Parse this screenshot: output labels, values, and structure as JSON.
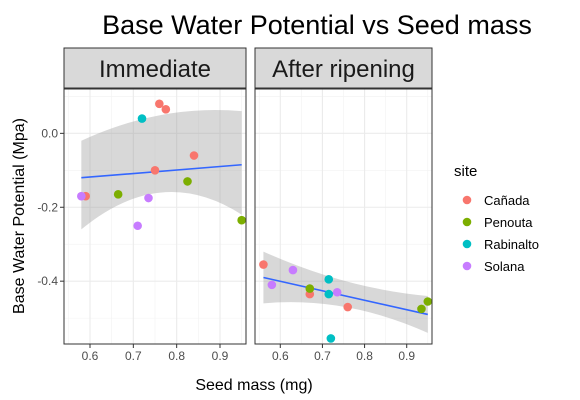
{
  "chart_data": {
    "type": "scatter",
    "title": "Base Water Potential vs Seed mass",
    "xlabel": "Seed mass (mg)",
    "ylabel": "Base Water Potential (Mpa)",
    "xlim": [
      0.54,
      0.96
    ],
    "ylim": [
      -0.57,
      0.12
    ],
    "x_ticks": [
      0.6,
      0.7,
      0.8,
      0.9
    ],
    "y_ticks": [
      0.0,
      -0.2,
      -0.4
    ],
    "grid": true,
    "legend_position": "right",
    "legend_title": "site",
    "sites": [
      {
        "name": "Cañada",
        "color": "#F8766D"
      },
      {
        "name": "Penouta",
        "color": "#7CAE00"
      },
      {
        "name": "Rabinalto",
        "color": "#00BFC4"
      },
      {
        "name": "Solana",
        "color": "#C77CFF"
      }
    ],
    "panels": [
      {
        "strip": "Immediate",
        "points": [
          {
            "x": 0.59,
            "y": -0.17,
            "site": "Cañada"
          },
          {
            "x": 0.75,
            "y": -0.1,
            "site": "Cañada"
          },
          {
            "x": 0.76,
            "y": 0.08,
            "site": "Cañada"
          },
          {
            "x": 0.775,
            "y": 0.065,
            "site": "Cañada"
          },
          {
            "x": 0.84,
            "y": -0.06,
            "site": "Cañada"
          },
          {
            "x": 0.665,
            "y": -0.165,
            "site": "Penouta"
          },
          {
            "x": 0.825,
            "y": -0.13,
            "site": "Penouta"
          },
          {
            "x": 0.95,
            "y": -0.235,
            "site": "Penouta"
          },
          {
            "x": 0.72,
            "y": 0.04,
            "site": "Rabinalto"
          },
          {
            "x": 0.58,
            "y": -0.17,
            "site": "Solana"
          },
          {
            "x": 0.71,
            "y": -0.25,
            "site": "Solana"
          },
          {
            "x": 0.735,
            "y": -0.175,
            "site": "Solana"
          }
        ],
        "fit": {
          "x": [
            0.58,
            0.95
          ],
          "y": [
            -0.12,
            -0.085
          ],
          "band_top": [
            -0.02,
            0.05,
            0.06
          ],
          "band_bottom": [
            -0.26,
            -0.16,
            -0.22
          ]
        }
      },
      {
        "strip": "After ripening",
        "points": [
          {
            "x": 0.56,
            "y": -0.355,
            "site": "Cañada"
          },
          {
            "x": 0.67,
            "y": -0.435,
            "site": "Cañada"
          },
          {
            "x": 0.76,
            "y": -0.47,
            "site": "Cañada"
          },
          {
            "x": 0.67,
            "y": -0.42,
            "site": "Penouta"
          },
          {
            "x": 0.935,
            "y": -0.475,
            "site": "Penouta"
          },
          {
            "x": 0.95,
            "y": -0.455,
            "site": "Penouta"
          },
          {
            "x": 0.715,
            "y": -0.395,
            "site": "Rabinalto"
          },
          {
            "x": 0.715,
            "y": -0.435,
            "site": "Rabinalto"
          },
          {
            "x": 0.72,
            "y": -0.555,
            "site": "Rabinalto"
          },
          {
            "x": 0.58,
            "y": -0.41,
            "site": "Solana"
          },
          {
            "x": 0.63,
            "y": -0.37,
            "site": "Solana"
          },
          {
            "x": 0.735,
            "y": -0.43,
            "site": "Solana"
          }
        ],
        "fit": {
          "x": [
            0.56,
            0.95
          ],
          "y": [
            -0.39,
            -0.49
          ],
          "band_top": [
            -0.32,
            -0.4,
            -0.44
          ],
          "band_bottom": [
            -0.46,
            -0.47,
            -0.54
          ]
        }
      }
    ]
  }
}
